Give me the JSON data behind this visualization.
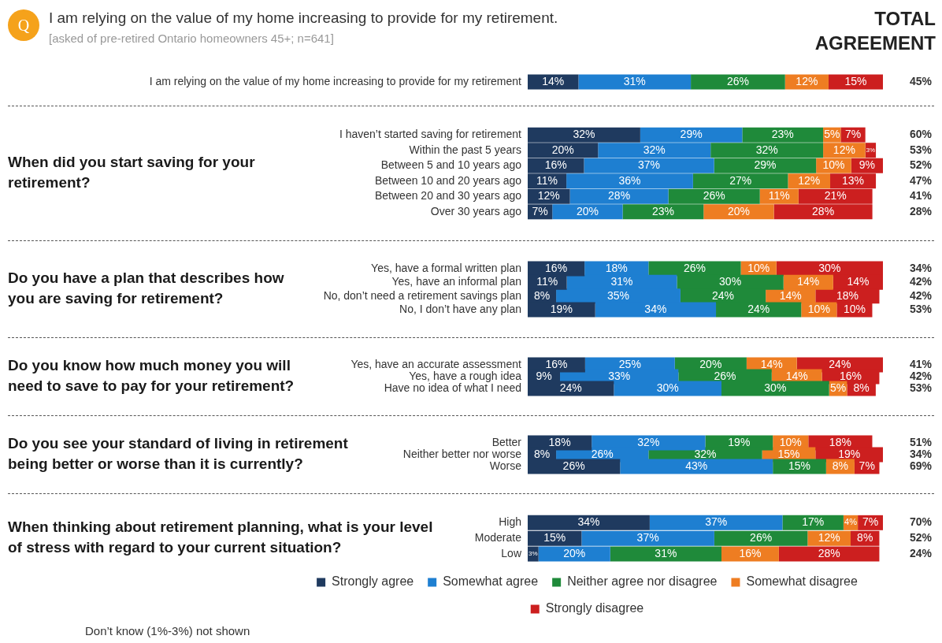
{
  "chart_data": [
    {
      "type": "bar",
      "orientation": "horizontal",
      "stacked": true,
      "title": "I am relying on the value of my home increasing to provide for my retirement.",
      "subtitle": "[asked of pre-retired Ontario homeowners 45+; n=641]",
      "annotations": [
        "45%",
        "Q",
        "TOTAL AGREEMENT"
      ],
      "categories": [
        "I am relying on the value of my home increasing to provide for my retirement"
      ],
      "series": [
        {
          "color": "#1f3a5f",
          "values": [
            14
          ],
          "value_labels": [
            "14%"
          ]
        },
        {
          "color": "#1e7fd1",
          "values": [
            31
          ],
          "value_labels": [
            "31%"
          ]
        },
        {
          "color": "#1f8a3a",
          "values": [
            26
          ],
          "value_labels": [
            "26%"
          ]
        },
        {
          "color": "#ee7d22",
          "values": [
            12
          ],
          "value_labels": [
            "12%"
          ]
        },
        {
          "color": "#cc1f1f",
          "values": [
            15
          ],
          "value_labels": [
            "15%"
          ]
        }
      ]
    },
    {
      "type": "bar",
      "orientation": "horizontal",
      "stacked": true,
      "ylabel": "When did you start saving for your retirement?",
      "annotations": [
        "60%",
        "53%",
        "52%",
        "47%",
        "41%",
        "28%"
      ],
      "categories": [
        "I haven’t started saving for retirement",
        "Within the past 5 years",
        "Between 5 and 10 years ago",
        "Between 10 and 20 years ago",
        "Between 20 and 30 years ago",
        "Over 30 years ago"
      ],
      "series": [
        {
          "color": "#1f3a5f",
          "values": [
            32,
            20,
            16,
            11,
            12,
            7
          ],
          "value_labels": [
            "32%",
            "20%",
            "16%",
            "11%",
            "12%",
            "7%"
          ]
        },
        {
          "color": "#1e7fd1",
          "values": [
            29,
            32,
            37,
            36,
            28,
            20
          ],
          "value_labels": [
            "29%",
            "32%",
            "37%",
            "36%",
            "28%",
            "20%"
          ]
        },
        {
          "color": "#1f8a3a",
          "values": [
            23,
            32,
            29,
            27,
            26,
            23
          ],
          "value_labels": [
            "23%",
            "32%",
            "29%",
            "27%",
            "26%",
            "23%"
          ]
        },
        {
          "color": "#ee7d22",
          "values": [
            5,
            12,
            10,
            12,
            11,
            20
          ],
          "value_labels": [
            "5%",
            "12%",
            "10%",
            "12%",
            "11%",
            "20%"
          ]
        },
        {
          "color": "#cc1f1f",
          "values": [
            7,
            3,
            9,
            13,
            21,
            28
          ],
          "value_labels": [
            "7%",
            "3%",
            "9%",
            "13%",
            "21%",
            "28%"
          ]
        }
      ]
    },
    {
      "type": "bar",
      "orientation": "horizontal",
      "stacked": true,
      "ylabel": "Do you have a plan that describes how you are saving for retirement?",
      "annotations": [
        "34%",
        "42%",
        "42%",
        "53%"
      ],
      "categories": [
        "Yes, have a formal written plan",
        "Yes, have an informal plan",
        "No, don’t need a retirement savings plan",
        "No, I don’t have any plan"
      ],
      "series": [
        {
          "color": "#1f3a5f",
          "values": [
            16,
            11,
            8,
            19
          ],
          "value_labels": [
            "16%",
            "11%",
            "8%",
            "19%"
          ]
        },
        {
          "color": "#1e7fd1",
          "values": [
            18,
            31,
            35,
            34
          ],
          "value_labels": [
            "18%",
            "31%",
            "35%",
            "34%"
          ]
        },
        {
          "color": "#1f8a3a",
          "values": [
            26,
            30,
            24,
            24
          ],
          "value_labels": [
            "26%",
            "30%",
            "24%",
            "24%"
          ]
        },
        {
          "color": "#ee7d22",
          "values": [
            10,
            14,
            14,
            10
          ],
          "value_labels": [
            "10%",
            "14%",
            "14%",
            "10%"
          ]
        },
        {
          "color": "#cc1f1f",
          "values": [
            30,
            14,
            18,
            10
          ],
          "value_labels": [
            "30%",
            "14%",
            "18%",
            "10%"
          ]
        }
      ]
    },
    {
      "type": "bar",
      "orientation": "horizontal",
      "stacked": true,
      "ylabel": "Do you know how much money you will need to save to pay for your retirement?",
      "annotations": [
        "41%",
        "42%",
        "53%"
      ],
      "categories": [
        "Yes, have an accurate assessment",
        "Yes, have a rough idea",
        "Have no idea of what I need"
      ],
      "series": [
        {
          "color": "#1f3a5f",
          "values": [
            16,
            9,
            24
          ],
          "value_labels": [
            "16%",
            "9%",
            "24%"
          ]
        },
        {
          "color": "#1e7fd1",
          "values": [
            25,
            33,
            30
          ],
          "value_labels": [
            "25%",
            "33%",
            "30%"
          ]
        },
        {
          "color": "#1f8a3a",
          "values": [
            20,
            26,
            30
          ],
          "value_labels": [
            "20%",
            "26%",
            "30%"
          ]
        },
        {
          "color": "#ee7d22",
          "values": [
            14,
            14,
            5
          ],
          "value_labels": [
            "14%",
            "14%",
            "5%"
          ]
        },
        {
          "color": "#cc1f1f",
          "values": [
            24,
            16,
            8
          ],
          "value_labels": [
            "24%",
            "16%",
            "8%"
          ]
        }
      ]
    },
    {
      "type": "bar",
      "orientation": "horizontal",
      "stacked": true,
      "ylabel": "Do you see your standard of living in retirement being better or worse than it is currently?",
      "annotations": [
        "51%",
        "34%",
        "69%"
      ],
      "categories": [
        "Better",
        "Neither better nor worse",
        "Worse"
      ],
      "series": [
        {
          "color": "#1f3a5f",
          "values": [
            18,
            8,
            26
          ],
          "value_labels": [
            "18%",
            "8%",
            "26%"
          ]
        },
        {
          "color": "#1e7fd1",
          "values": [
            32,
            26,
            43
          ],
          "value_labels": [
            "32%",
            "26%",
            "43%"
          ]
        },
        {
          "color": "#1f8a3a",
          "values": [
            19,
            32,
            15
          ],
          "value_labels": [
            "19%",
            "32%",
            "15%"
          ]
        },
        {
          "color": "#ee7d22",
          "values": [
            10,
            15,
            8
          ],
          "value_labels": [
            "10%",
            "15%",
            "8%"
          ]
        },
        {
          "color": "#cc1f1f",
          "values": [
            18,
            19,
            7
          ],
          "value_labels": [
            "18%",
            "19%",
            "7%"
          ]
        }
      ]
    },
    {
      "type": "bar",
      "orientation": "horizontal",
      "stacked": true,
      "legend": "bottom",
      "ylabel": "When thinking about retirement planning, what is your level of stress with regard to your current situation?",
      "annotations": [
        "70%",
        "52%",
        "24%",
        "Don’t know (1%-3%) not shown"
      ],
      "categories": [
        "High",
        "Moderate",
        "Low"
      ],
      "series": [
        {
          "name": "Strongly agree",
          "color": "#1f3a5f",
          "values": [
            34,
            15,
            3
          ],
          "value_labels": [
            "34%",
            "15%",
            "3%"
          ]
        },
        {
          "name": "Somewhat agree",
          "color": "#1e7fd1",
          "values": [
            37,
            37,
            20
          ],
          "value_labels": [
            "37%",
            "37%",
            "20%"
          ]
        },
        {
          "name": "Neither agree nor disagree",
          "color": "#1f8a3a",
          "values": [
            17,
            26,
            31
          ],
          "value_labels": [
            "17%",
            "26%",
            "31%"
          ]
        },
        {
          "name": "Somewhat disagree",
          "color": "#ee7d22",
          "values": [
            4,
            12,
            16
          ],
          "value_labels": [
            "4%",
            "12%",
            "16%"
          ]
        },
        {
          "name": "Strongly disagree",
          "color": "#cc1f1f",
          "values": [
            7,
            8,
            28
          ],
          "value_labels": [
            "7%",
            "8%",
            "28%"
          ]
        }
      ]
    }
  ]
}
